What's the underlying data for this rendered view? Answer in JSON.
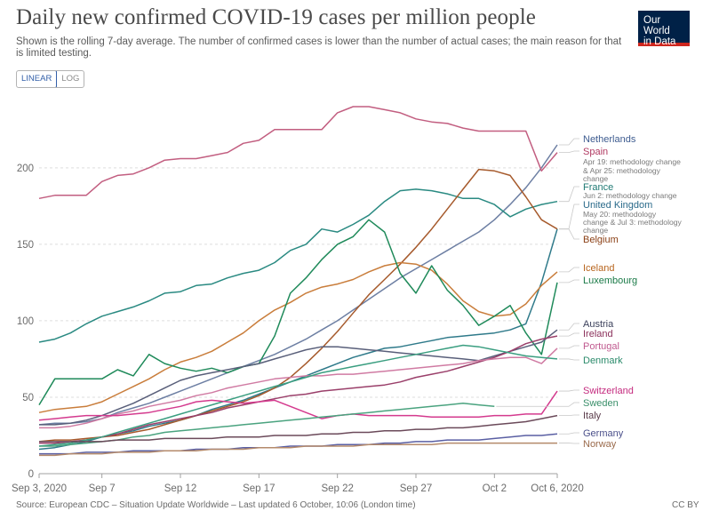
{
  "header": {
    "title": "Daily new confirmed COVID-19 cases per million people",
    "subtitle": "Shown is the rolling 7-day average. The number of confirmed cases is lower than the number of actual cases; the main reason for that is limited testing.",
    "logo_line1": "Our World",
    "logo_line2": "in Data"
  },
  "controls": {
    "linear_label": "LINEAR",
    "log_label": "LOG",
    "selected": "LINEAR"
  },
  "footer": {
    "source": "Source: European CDC – Situation Update Worldwide – Last updated 6 October, 10:06 (London time)",
    "license": "CC BY"
  },
  "chart_data": {
    "type": "line",
    "title": "Daily new confirmed COVID-19 cases per million people",
    "xlabel": "",
    "ylabel": "",
    "x_range": [
      0,
      33
    ],
    "ylim": [
      0,
      240
    ],
    "y_ticks": [
      0,
      50,
      100,
      150,
      200
    ],
    "x_ticks": [
      {
        "day": 0,
        "label": "Sep 3, 2020"
      },
      {
        "day": 4,
        "label": "Sep 7"
      },
      {
        "day": 9,
        "label": "Sep 12"
      },
      {
        "day": 14,
        "label": "Sep 17"
      },
      {
        "day": 19,
        "label": "Sep 22"
      },
      {
        "day": 24,
        "label": "Sep 27"
      },
      {
        "day": 29,
        "label": "Oct 2"
      },
      {
        "day": 33,
        "label": "Oct 6, 2020"
      }
    ],
    "series": [
      {
        "name": "Netherlands",
        "color": "#6d7fa3",
        "values": [
          32,
          33,
          33,
          34,
          36,
          40,
          43,
          46,
          50,
          54,
          58,
          62,
          66,
          70,
          74,
          78,
          83,
          88,
          94,
          100,
          107,
          114,
          121,
          128,
          134,
          140,
          146,
          152,
          158,
          166,
          176,
          187,
          200,
          215
        ]
      },
      {
        "name": "Spain",
        "color": "#c25e80",
        "values": [
          180,
          182,
          182,
          182,
          191,
          195,
          196,
          200,
          205,
          206,
          206,
          208,
          210,
          216,
          218,
          225,
          225,
          225,
          225,
          236,
          240,
          240,
          238,
          236,
          232,
          230,
          229,
          226,
          224,
          224,
          224,
          224,
          198,
          210
        ]
      },
      {
        "name": "France",
        "color": "#2a8a82",
        "values": [
          86,
          88,
          92,
          98,
          103,
          106,
          109,
          113,
          118,
          119,
          123,
          124,
          128,
          131,
          133,
          138,
          146,
          150,
          160,
          158,
          163,
          169,
          178,
          185,
          186,
          185,
          183,
          180,
          180,
          176,
          168,
          173,
          176,
          178
        ]
      },
      {
        "name": "United Kingdom",
        "color": "#2f7a8a",
        "values": [
          16,
          17,
          19,
          21,
          24,
          26,
          28,
          31,
          33,
          35,
          38,
          42,
          45,
          48,
          52,
          56,
          60,
          64,
          68,
          72,
          76,
          79,
          82,
          83,
          85,
          87,
          89,
          90,
          91,
          92,
          94,
          98,
          125,
          160
        ]
      },
      {
        "name": "Belgium",
        "color": "#a65a2c",
        "values": [
          21,
          22,
          22,
          23,
          24,
          25,
          27,
          29,
          32,
          35,
          38,
          41,
          44,
          47,
          51,
          56,
          63,
          72,
          82,
          93,
          105,
          117,
          127,
          137,
          148,
          160,
          173,
          186,
          199,
          198,
          195,
          181,
          166,
          160
        ]
      },
      {
        "name": "Iceland",
        "color": "#c97d3b",
        "values": [
          40,
          42,
          43,
          44,
          47,
          52,
          57,
          62,
          68,
          73,
          76,
          80,
          86,
          92,
          100,
          107,
          112,
          118,
          122,
          124,
          127,
          132,
          136,
          138,
          137,
          133,
          124,
          113,
          106,
          103,
          104,
          111,
          123,
          132
        ]
      },
      {
        "name": "Luxembourg",
        "color": "#1f8a5a",
        "values": [
          45,
          62,
          62,
          62,
          62,
          68,
          64,
          78,
          72,
          69,
          67,
          69,
          66,
          70,
          72,
          90,
          118,
          128,
          140,
          150,
          155,
          166,
          158,
          131,
          118,
          136,
          120,
          110,
          97,
          103,
          110,
          92,
          78,
          125
        ]
      },
      {
        "name": "Austria",
        "color": "#595f7a",
        "values": [
          32,
          32,
          33,
          35,
          38,
          42,
          46,
          51,
          56,
          61,
          64,
          66,
          68,
          70,
          72,
          75,
          78,
          81,
          83,
          83,
          82,
          81,
          80,
          79,
          78,
          77,
          76,
          75,
          74,
          77,
          80,
          83,
          86,
          94
        ]
      },
      {
        "name": "Ireland",
        "color": "#9a3f6a",
        "values": [
          20,
          20,
          21,
          22,
          24,
          26,
          29,
          32,
          34,
          36,
          38,
          40,
          43,
          45,
          47,
          49,
          51,
          52,
          54,
          55,
          56,
          57,
          58,
          60,
          63,
          65,
          67,
          70,
          73,
          76,
          80,
          85,
          88,
          90
        ]
      },
      {
        "name": "Portugal",
        "color": "#d07ba3",
        "values": [
          30,
          30,
          31,
          33,
          36,
          39,
          41,
          44,
          46,
          48,
          51,
          53,
          56,
          58,
          60,
          62,
          63,
          64,
          64,
          65,
          65,
          66,
          67,
          68,
          69,
          70,
          71,
          72,
          74,
          75,
          76,
          76,
          72,
          82
        ]
      },
      {
        "name": "Denmark",
        "color": "#3a9e80",
        "values": [
          18,
          19,
          20,
          22,
          24,
          27,
          30,
          33,
          36,
          39,
          42,
          45,
          48,
          51,
          54,
          57,
          60,
          63,
          66,
          68,
          70,
          72,
          74,
          76,
          78,
          80,
          82,
          84,
          83,
          81,
          79,
          77,
          76,
          75
        ]
      },
      {
        "name": "Switzerland",
        "color": "#d43a8e",
        "values": [
          35,
          36,
          37,
          38,
          38,
          38,
          39,
          40,
          42,
          44,
          47,
          48,
          47,
          46,
          47,
          48,
          44,
          40,
          36,
          38,
          39,
          38,
          38,
          38,
          38,
          37,
          37,
          37,
          37,
          38,
          38,
          39,
          39,
          54
        ]
      },
      {
        "name": "Sweden",
        "color": "#4aa37f",
        "values": [
          18,
          18,
          19,
          20,
          21,
          22,
          24,
          25,
          27,
          28,
          29,
          30,
          31,
          32,
          33,
          34,
          35,
          36,
          37,
          38,
          39,
          40,
          41,
          42,
          43,
          44,
          45,
          46,
          45,
          44,
          null,
          null,
          null,
          null
        ]
      },
      {
        "name": "Italy",
        "color": "#6b4a5a",
        "values": [
          21,
          21,
          21,
          21,
          21,
          22,
          22,
          22,
          23,
          23,
          23,
          23,
          24,
          24,
          24,
          25,
          25,
          25,
          26,
          26,
          27,
          27,
          28,
          28,
          29,
          29,
          30,
          30,
          31,
          32,
          33,
          34,
          36,
          38
        ]
      },
      {
        "name": "Germany",
        "color": "#5a5fa3",
        "values": [
          13,
          13,
          13,
          14,
          14,
          14,
          15,
          15,
          15,
          15,
          16,
          16,
          16,
          17,
          17,
          17,
          18,
          18,
          18,
          19,
          19,
          19,
          20,
          20,
          21,
          21,
          22,
          22,
          22,
          23,
          24,
          25,
          25,
          26
        ]
      },
      {
        "name": "Norway",
        "color": "#b48a6b",
        "values": [
          12,
          12,
          13,
          13,
          13,
          14,
          14,
          14,
          15,
          15,
          15,
          16,
          16,
          16,
          17,
          17,
          17,
          18,
          18,
          18,
          18,
          19,
          19,
          19,
          19,
          19,
          20,
          20,
          20,
          20,
          20,
          20,
          20,
          20
        ]
      }
    ],
    "legend": [
      {
        "text": "Netherlands",
        "color": "#3d5b8f"
      },
      {
        "text": "Spain",
        "color": "#b13a62"
      },
      {
        "text": "Apr 19: methodology change",
        "color": "#7a7a7a",
        "note": true
      },
      {
        "text": "& Apr 25: methodology",
        "color": "#7a7a7a",
        "note": true
      },
      {
        "text": "change",
        "color": "#7a7a7a",
        "note": true
      },
      {
        "text": "France",
        "color": "#1f7a74"
      },
      {
        "text": "Jun 2: methodology change",
        "color": "#7a7a7a",
        "note": true
      },
      {
        "text": "United Kingdom",
        "color": "#2a6a8a"
      },
      {
        "text": "May 20: methodology",
        "color": "#7a7a7a",
        "note": true
      },
      {
        "text": "change & Jul 3: methodology",
        "color": "#7a7a7a",
        "note": true
      },
      {
        "text": "change",
        "color": "#7a7a7a",
        "note": true
      },
      {
        "text": "Belgium",
        "color": "#8a3f14"
      },
      {
        "text": "Iceland",
        "color": "#b8651e"
      },
      {
        "text": "Luxembourg",
        "color": "#1a7a47"
      },
      {
        "text": "Austria",
        "color": "#3a3f5a"
      },
      {
        "text": "Ireland",
        "color": "#8a2f5a"
      },
      {
        "text": "Portugal",
        "color": "#c05a8f"
      },
      {
        "text": "Denmark",
        "color": "#2a8a6a"
      },
      {
        "text": "Switzerland",
        "color": "#c42a7e"
      },
      {
        "text": "Sweden",
        "color": "#3a8f6a"
      },
      {
        "text": "Italy",
        "color": "#5a3a4a"
      },
      {
        "text": "Germany",
        "color": "#4a4f8a"
      },
      {
        "text": "Norway",
        "color": "#9a6a4b"
      }
    ]
  }
}
